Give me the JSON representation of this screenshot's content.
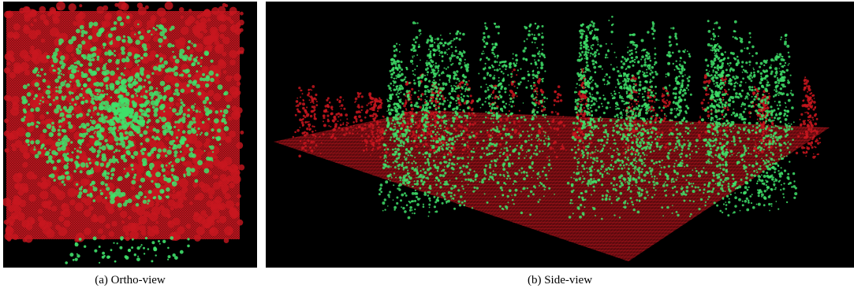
{
  "figure": {
    "panels": [
      {
        "id": "a",
        "caption": "(a) Ortho-view"
      },
      {
        "id": "b",
        "caption": "(b) Side-view"
      }
    ],
    "colors": {
      "background": "#000000",
      "ground_points": "#b0121c",
      "canopy_red": "#c8161f",
      "vegetation_green": "#3fe06a"
    }
  }
}
